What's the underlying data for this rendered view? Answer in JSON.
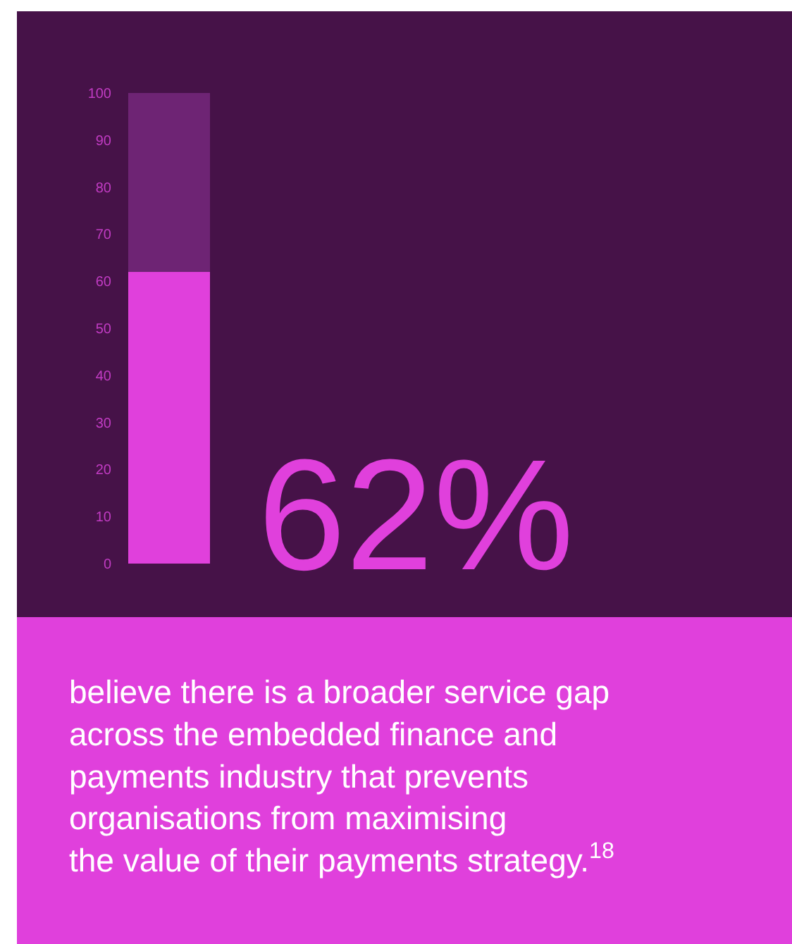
{
  "chart_data": {
    "type": "bar",
    "stacked": true,
    "categories": [
      null
    ],
    "series": [
      {
        "color": "#e040dc",
        "values": [
          62
        ]
      },
      {
        "color": "#6e2474",
        "values": [
          38
        ]
      }
    ],
    "ylim": [
      0,
      100
    ],
    "yticks": [
      0,
      10,
      20,
      30,
      40,
      50,
      60,
      70,
      80,
      90,
      100
    ],
    "grid": false,
    "tick_labels": "y",
    "annotations": [
      "62%",
      "believe there is a broader service gap\nacross the embedded finance and\npayments industry that prevents\norganisations from maximising\nthe value of their payments strategy.$^{18}$"
    ]
  }
}
